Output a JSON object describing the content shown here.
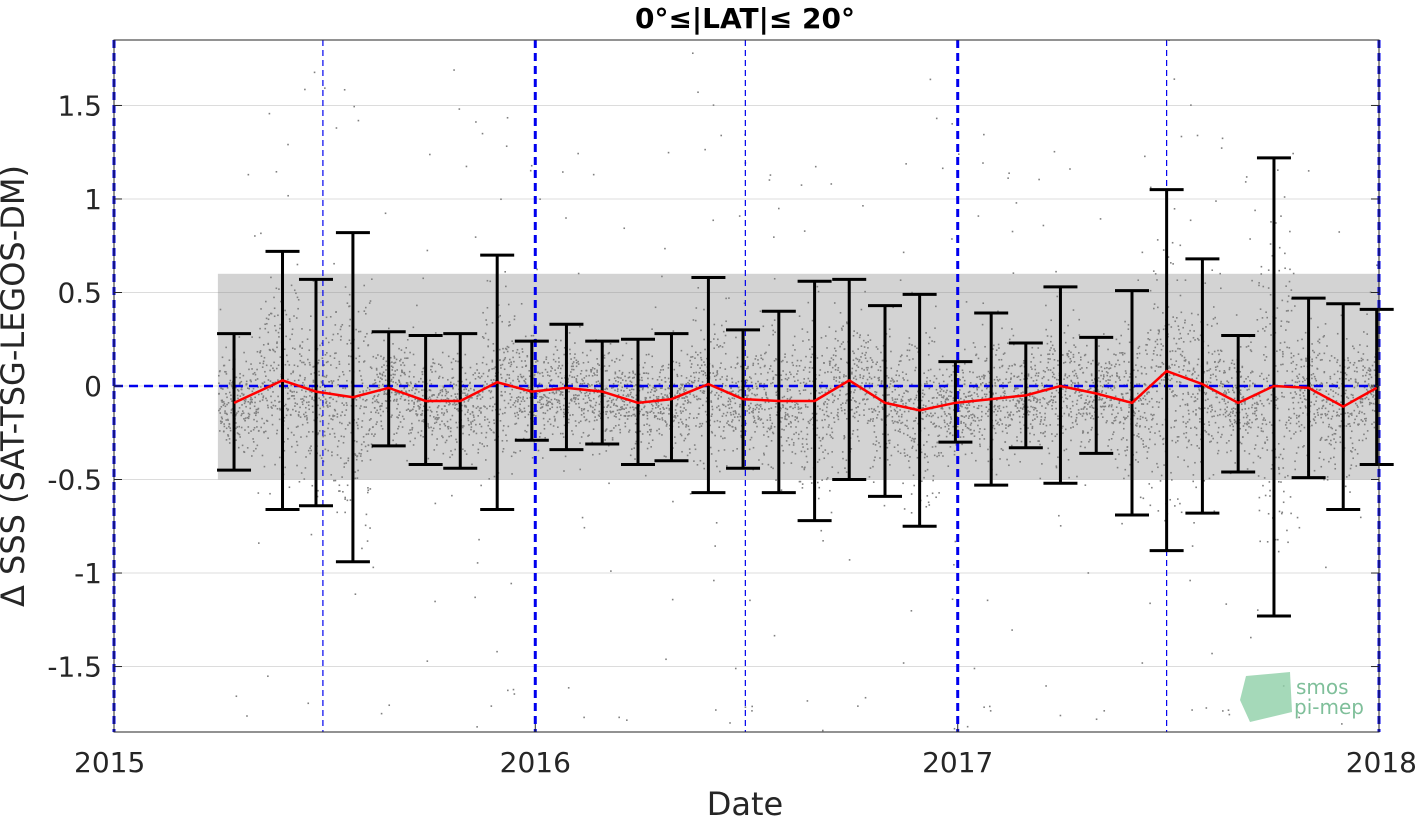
{
  "chart_data": {
    "type": "scatter",
    "title": "0°≤|LAT|≤ 20°",
    "xlabel": "Date",
    "ylabel": "Δ SSS (SAT-TSG-LEGOS-DM)",
    "xlim": [
      "2015-01-01",
      "2018-01-01"
    ],
    "ylim": [
      -1.85,
      1.85
    ],
    "x_ticks": [
      "2015",
      "2016",
      "2017",
      "2018"
    ],
    "y_ticks": [
      -1.5,
      -1,
      -0.5,
      0,
      0.5,
      1,
      1.5
    ],
    "grid": true,
    "logo": {
      "line1": "smos",
      "line2": "pi-mep"
    },
    "colors": {
      "points": "#808080",
      "mean_line": "#ff0000",
      "error_bars": "#000000",
      "reference_lines": "#0000ee"
    },
    "scatter_band": {
      "description": "dense cloud of individual Δ SSS values",
      "x_range": [
        "2015-04-01",
        "2018-01-01"
      ],
      "core_range": [
        -0.5,
        0.6
      ]
    },
    "zero_line": 0,
    "vertical_reference_lines": [
      {
        "date": "2015-01-01",
        "style": "thick"
      },
      {
        "date": "2015-07-01",
        "style": "thin"
      },
      {
        "date": "2016-01-01",
        "style": "thick"
      },
      {
        "date": "2016-07-01",
        "style": "thin"
      },
      {
        "date": "2017-01-01",
        "style": "thick"
      },
      {
        "date": "2017-07-01",
        "style": "thin"
      },
      {
        "date": "2018-01-01",
        "style": "thick"
      }
    ],
    "series": [
      {
        "type": "mean_with_error_bars",
        "points": [
          {
            "date": "2015-04-15",
            "mean": -0.09,
            "low": -0.45,
            "high": 0.28
          },
          {
            "date": "2015-05-27",
            "mean": 0.03,
            "low": -0.66,
            "high": 0.72
          },
          {
            "date": "2015-06-25",
            "mean": -0.03,
            "low": -0.64,
            "high": 0.57
          },
          {
            "date": "2015-07-27",
            "mean": -0.06,
            "low": -0.94,
            "high": 0.82
          },
          {
            "date": "2015-08-27",
            "mean": -0.01,
            "low": -0.32,
            "high": 0.29
          },
          {
            "date": "2015-09-28",
            "mean": -0.08,
            "low": -0.42,
            "high": 0.27
          },
          {
            "date": "2015-10-28",
            "mean": -0.08,
            "low": -0.44,
            "high": 0.28
          },
          {
            "date": "2015-11-29",
            "mean": 0.02,
            "low": -0.66,
            "high": 0.7
          },
          {
            "date": "2015-12-29",
            "mean": -0.03,
            "low": -0.29,
            "high": 0.24
          },
          {
            "date": "2016-01-28",
            "mean": -0.01,
            "low": -0.34,
            "high": 0.33
          },
          {
            "date": "2016-02-28",
            "mean": -0.03,
            "low": -0.31,
            "high": 0.24
          },
          {
            "date": "2016-03-30",
            "mean": -0.09,
            "low": -0.42,
            "high": 0.25
          },
          {
            "date": "2016-04-28",
            "mean": -0.07,
            "low": -0.4,
            "high": 0.28
          },
          {
            "date": "2016-05-30",
            "mean": 0.01,
            "low": -0.57,
            "high": 0.58
          },
          {
            "date": "2016-06-29",
            "mean": -0.07,
            "low": -0.44,
            "high": 0.3
          },
          {
            "date": "2016-07-30",
            "mean": -0.08,
            "low": -0.57,
            "high": 0.4
          },
          {
            "date": "2016-08-30",
            "mean": -0.08,
            "low": -0.72,
            "high": 0.56
          },
          {
            "date": "2016-09-29",
            "mean": 0.03,
            "low": -0.5,
            "high": 0.57
          },
          {
            "date": "2016-10-30",
            "mean": -0.09,
            "low": -0.59,
            "high": 0.43
          },
          {
            "date": "2016-11-29",
            "mean": -0.13,
            "low": -0.75,
            "high": 0.49
          },
          {
            "date": "2016-12-30",
            "mean": -0.09,
            "low": -0.3,
            "high": 0.13
          },
          {
            "date": "2017-01-30",
            "mean": -0.07,
            "low": -0.53,
            "high": 0.39
          },
          {
            "date": "2017-03-01",
            "mean": -0.05,
            "low": -0.33,
            "high": 0.23
          },
          {
            "date": "2017-03-31",
            "mean": 0.0,
            "low": -0.52,
            "high": 0.53
          },
          {
            "date": "2017-05-01",
            "mean": -0.04,
            "low": -0.36,
            "high": 0.26
          },
          {
            "date": "2017-06-01",
            "mean": -0.09,
            "low": -0.69,
            "high": 0.51
          },
          {
            "date": "2017-07-01",
            "mean": 0.08,
            "low": -0.88,
            "high": 1.05
          },
          {
            "date": "2017-08-01",
            "mean": 0.01,
            "low": -0.68,
            "high": 0.68
          },
          {
            "date": "2017-09-01",
            "mean": -0.09,
            "low": -0.46,
            "high": 0.27
          },
          {
            "date": "2017-10-02",
            "mean": 0.0,
            "low": -1.23,
            "high": 1.22
          },
          {
            "date": "2017-11-01",
            "mean": -0.01,
            "low": -0.49,
            "high": 0.47
          },
          {
            "date": "2017-12-01",
            "mean": -0.11,
            "low": -0.66,
            "high": 0.44
          },
          {
            "date": "2017-12-30",
            "mean": -0.01,
            "low": -0.42,
            "high": 0.41
          }
        ]
      }
    ]
  }
}
